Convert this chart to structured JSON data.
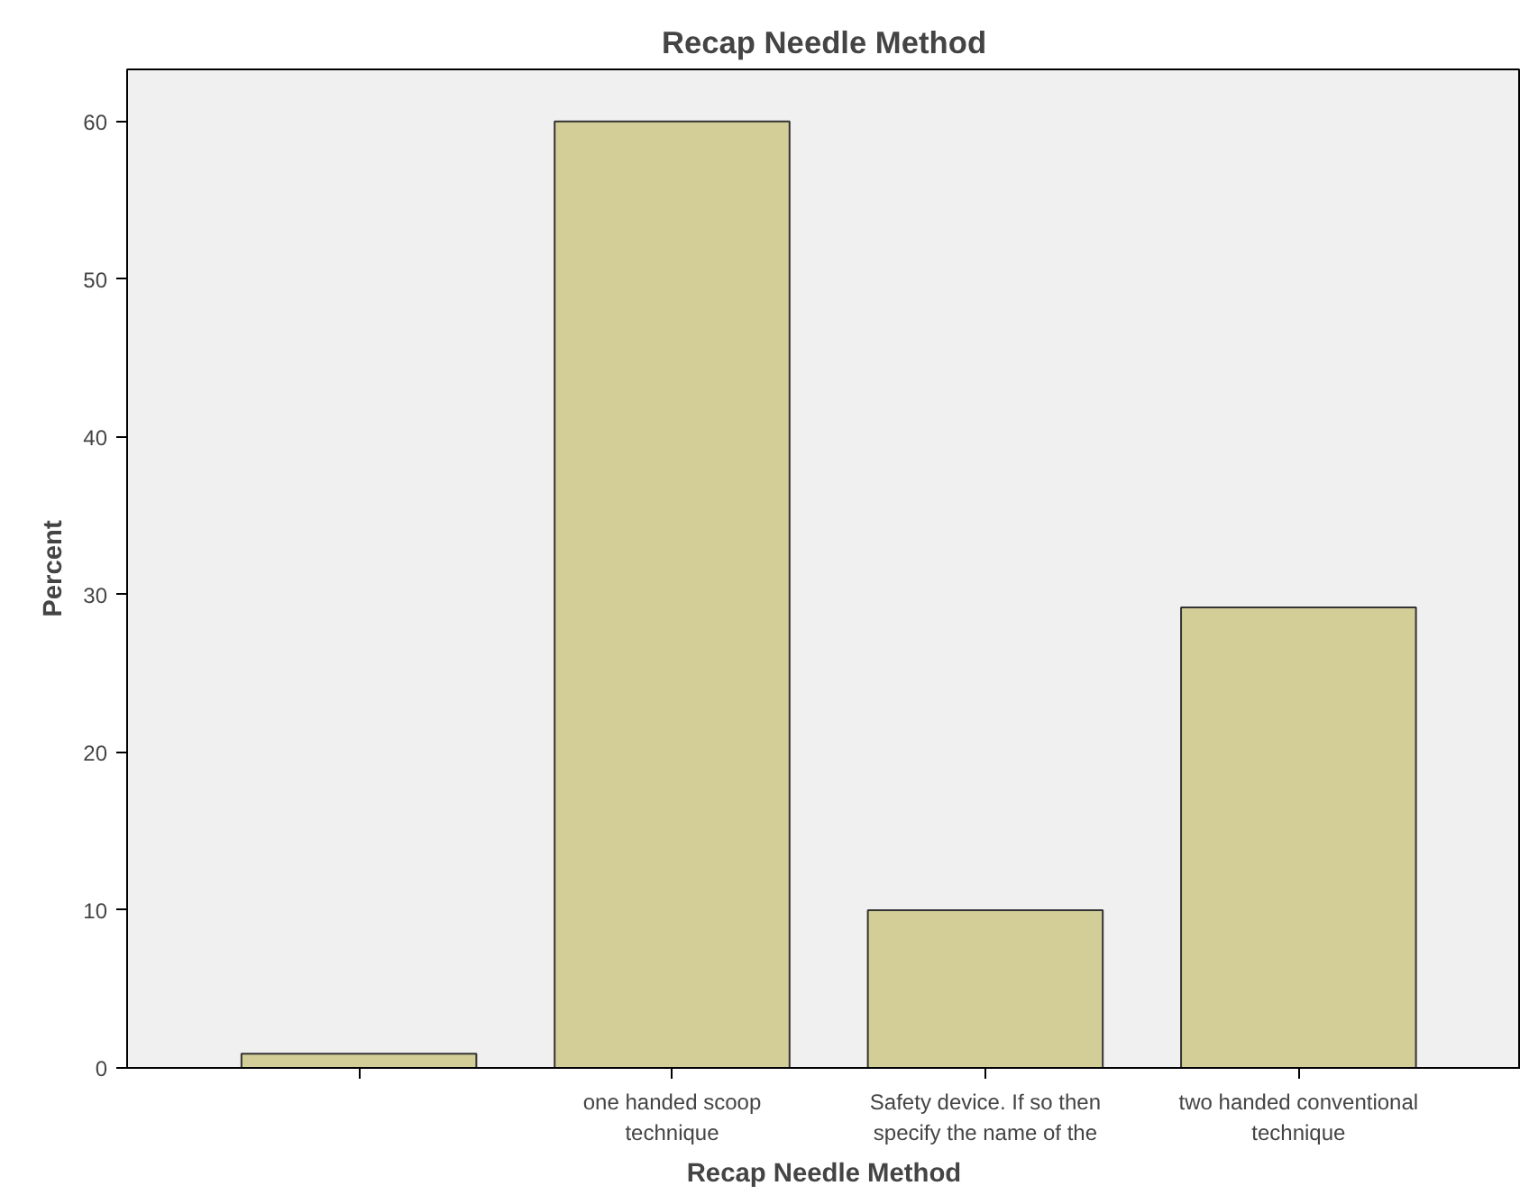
{
  "chart_data": {
    "type": "bar",
    "title": "Recap Needle Method",
    "xlabel": "Recap Needle Method",
    "ylabel": "Percent",
    "categories": [
      null,
      "one handed scoop\ntechnique",
      "Safety device. If so then\nspecify the name of the",
      "two handed conventional\ntechnique"
    ],
    "values": [
      0.9,
      60,
      10,
      29.2
    ],
    "color": "#d3ce97",
    "ylim": [
      0,
      63.3
    ],
    "yticks": [
      0,
      10,
      20,
      30,
      40,
      50,
      60
    ],
    "grid": false
  }
}
